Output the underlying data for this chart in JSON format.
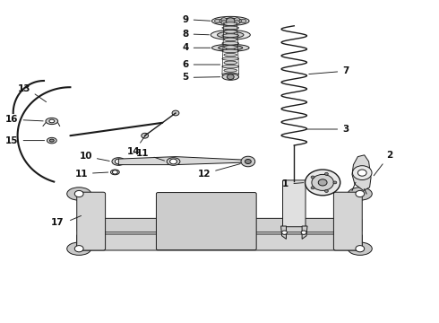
{
  "bg_color": "#ffffff",
  "line_color": "#1a1a1a",
  "label_color": "#111111",
  "fig_w": 4.9,
  "fig_h": 3.6,
  "dpi": 100
}
